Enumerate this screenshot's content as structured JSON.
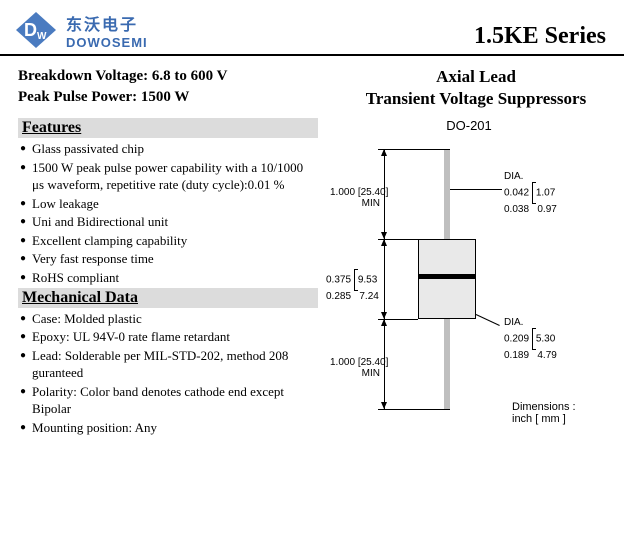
{
  "header": {
    "logo_cn": "东沃电子",
    "logo_en": "DOWOSEMI",
    "series": "1.5KE Series"
  },
  "specs": {
    "line1": "Breakdown Voltage: 6.8 to 600 V",
    "line2": "Peak Pulse Power: 1500 W"
  },
  "product_title": {
    "line1": "Axial Lead",
    "line2": "Transient Voltage Suppressors"
  },
  "features": {
    "title": "Features",
    "items": [
      "Glass passivated chip",
      "1500 W peak pulse power capability with a 10/1000 μs waveform, repetitive rate (duty cycle):0.01 %",
      "Low leakage",
      "Uni and Bidirectional unit",
      "Excellent clamping capability",
      "Very fast response time",
      "RoHS compliant"
    ]
  },
  "mechanical": {
    "title": "Mechanical Data",
    "items": [
      "Case: Molded plastic",
      "Epoxy: UL 94V-0 rate flame retardant",
      "Lead: Solderable per MIL-STD-202, method 208 guranteed",
      "Polarity: Color band denotes cathode end except Bipolar",
      "Mounting position: Any"
    ]
  },
  "package": {
    "label": "DO-201",
    "dimensions_note_l1": "Dimensions :",
    "dimensions_note_l2": "inch [ mm ]",
    "lead_len_in": "1.000",
    "lead_len_mm": "[25.40]",
    "lead_min": "MIN",
    "lead_dia_label": "DIA.",
    "lead_dia_in_max": "0.042",
    "lead_dia_in_min": "0.038",
    "lead_dia_mm_max": "1.07",
    "lead_dia_mm_min": "0.97",
    "body_len_in_max": "0.375",
    "body_len_in_min": "0.285",
    "body_len_mm_max": "9.53",
    "body_len_mm_min": "7.24",
    "body_dia_label": "DIA.",
    "body_dia_in_max": "0.209",
    "body_dia_in_min": "0.189",
    "body_dia_mm_max": "5.30",
    "body_dia_mm_min": "4.79"
  },
  "colors": {
    "brand": "#3a6ab0",
    "section_bg": "#dcdcdc",
    "body_fill": "#e9e9e9",
    "lead_fill": "#bfbfbf"
  }
}
